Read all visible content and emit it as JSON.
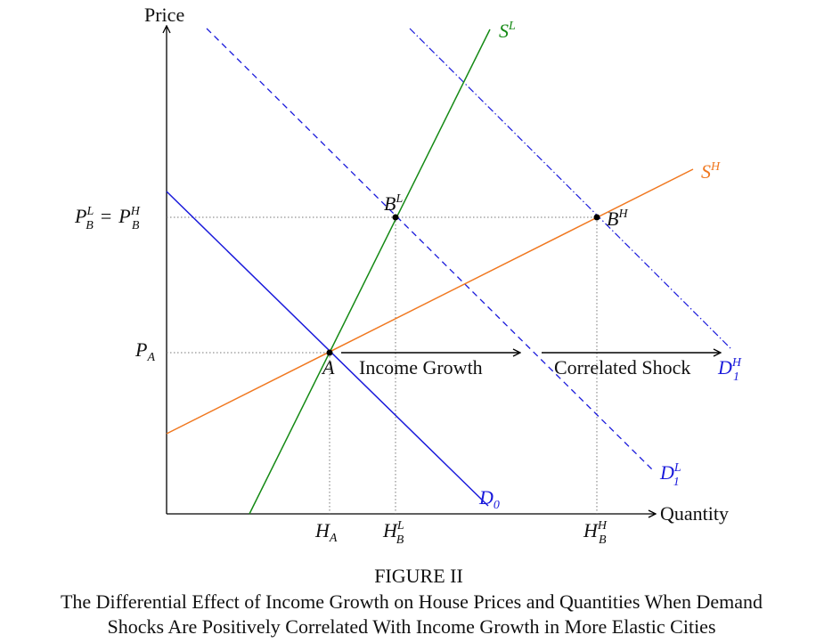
{
  "axes": {
    "y_label": "Price",
    "x_label": "Quantity"
  },
  "curves": {
    "supply_low": {
      "base": "S",
      "sup": "L"
    },
    "supply_high": {
      "base": "S",
      "sup": "H"
    },
    "demand_0": {
      "base": "D",
      "sub": "0"
    },
    "demand_low": {
      "base": "D",
      "sup": "L",
      "sub": "1"
    },
    "demand_high": {
      "base": "D",
      "sup": "H",
      "sub": "1"
    }
  },
  "points": {
    "a": "A",
    "b_low": {
      "base": "B",
      "sup": "L"
    },
    "b_high": {
      "base": "B",
      "sup": "H"
    }
  },
  "price_labels": {
    "p_a": {
      "base": "P",
      "sub": "A"
    },
    "p_b": {
      "left": {
        "base": "P",
        "sup": "L",
        "sub": "B"
      },
      "equals": "=",
      "right": {
        "base": "P",
        "sup": "H",
        "sub": "B"
      }
    }
  },
  "quantity_labels": {
    "h_a": {
      "base": "H",
      "sub": "A"
    },
    "h_b_low": {
      "base": "H",
      "sup": "L",
      "sub": "B"
    },
    "h_b_high": {
      "base": "H",
      "sup": "H",
      "sub": "B"
    }
  },
  "arrows": {
    "income": "Income Growth",
    "shock": "Correlated Shock"
  },
  "caption": {
    "label": "FIGURE II",
    "lines": [
      "The Differential Effect of Income Growth on House Prices and Quantities When Demand",
      "Shocks Are Positively Correlated With Income Growth in More Elastic Cities"
    ]
  }
}
